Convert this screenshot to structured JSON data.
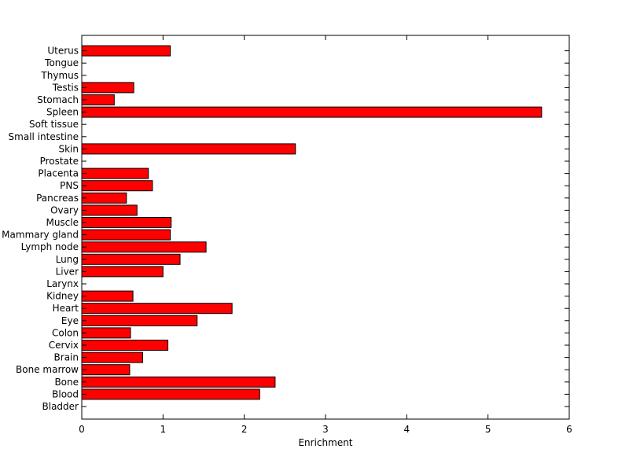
{
  "chart_data": {
    "type": "bar",
    "orientation": "horizontal",
    "title": "",
    "xlabel": "Enrichment",
    "ylabel": "",
    "xlim": [
      0,
      6
    ],
    "xticks": [
      "0",
      "1",
      "2",
      "3",
      "4",
      "5",
      "6"
    ],
    "grid": false,
    "bar_color": "#ff0000",
    "categories": [
      "Bladder",
      "Blood",
      "Bone",
      "Bone marrow",
      "Brain",
      "Cervix",
      "Colon",
      "Eye",
      "Heart",
      "Kidney",
      "Larynx",
      "Liver",
      "Lung",
      "Lymph node",
      "Mammary gland",
      "Muscle",
      "Ovary",
      "Pancreas",
      "PNS",
      "Placenta",
      "Prostate",
      "Skin",
      "Small intestine",
      "Soft tissue",
      "Spleen",
      "Stomach",
      "Testis",
      "Thymus",
      "Tongue",
      "Uterus"
    ],
    "values": [
      0,
      2.19,
      2.38,
      0.59,
      0.75,
      1.06,
      0.6,
      1.42,
      1.85,
      0.63,
      0,
      1.0,
      1.21,
      1.53,
      1.09,
      1.1,
      0.68,
      0.55,
      0.87,
      0.82,
      0,
      2.63,
      0,
      0,
      5.66,
      0.4,
      0.64,
      0,
      0,
      1.09
    ]
  }
}
